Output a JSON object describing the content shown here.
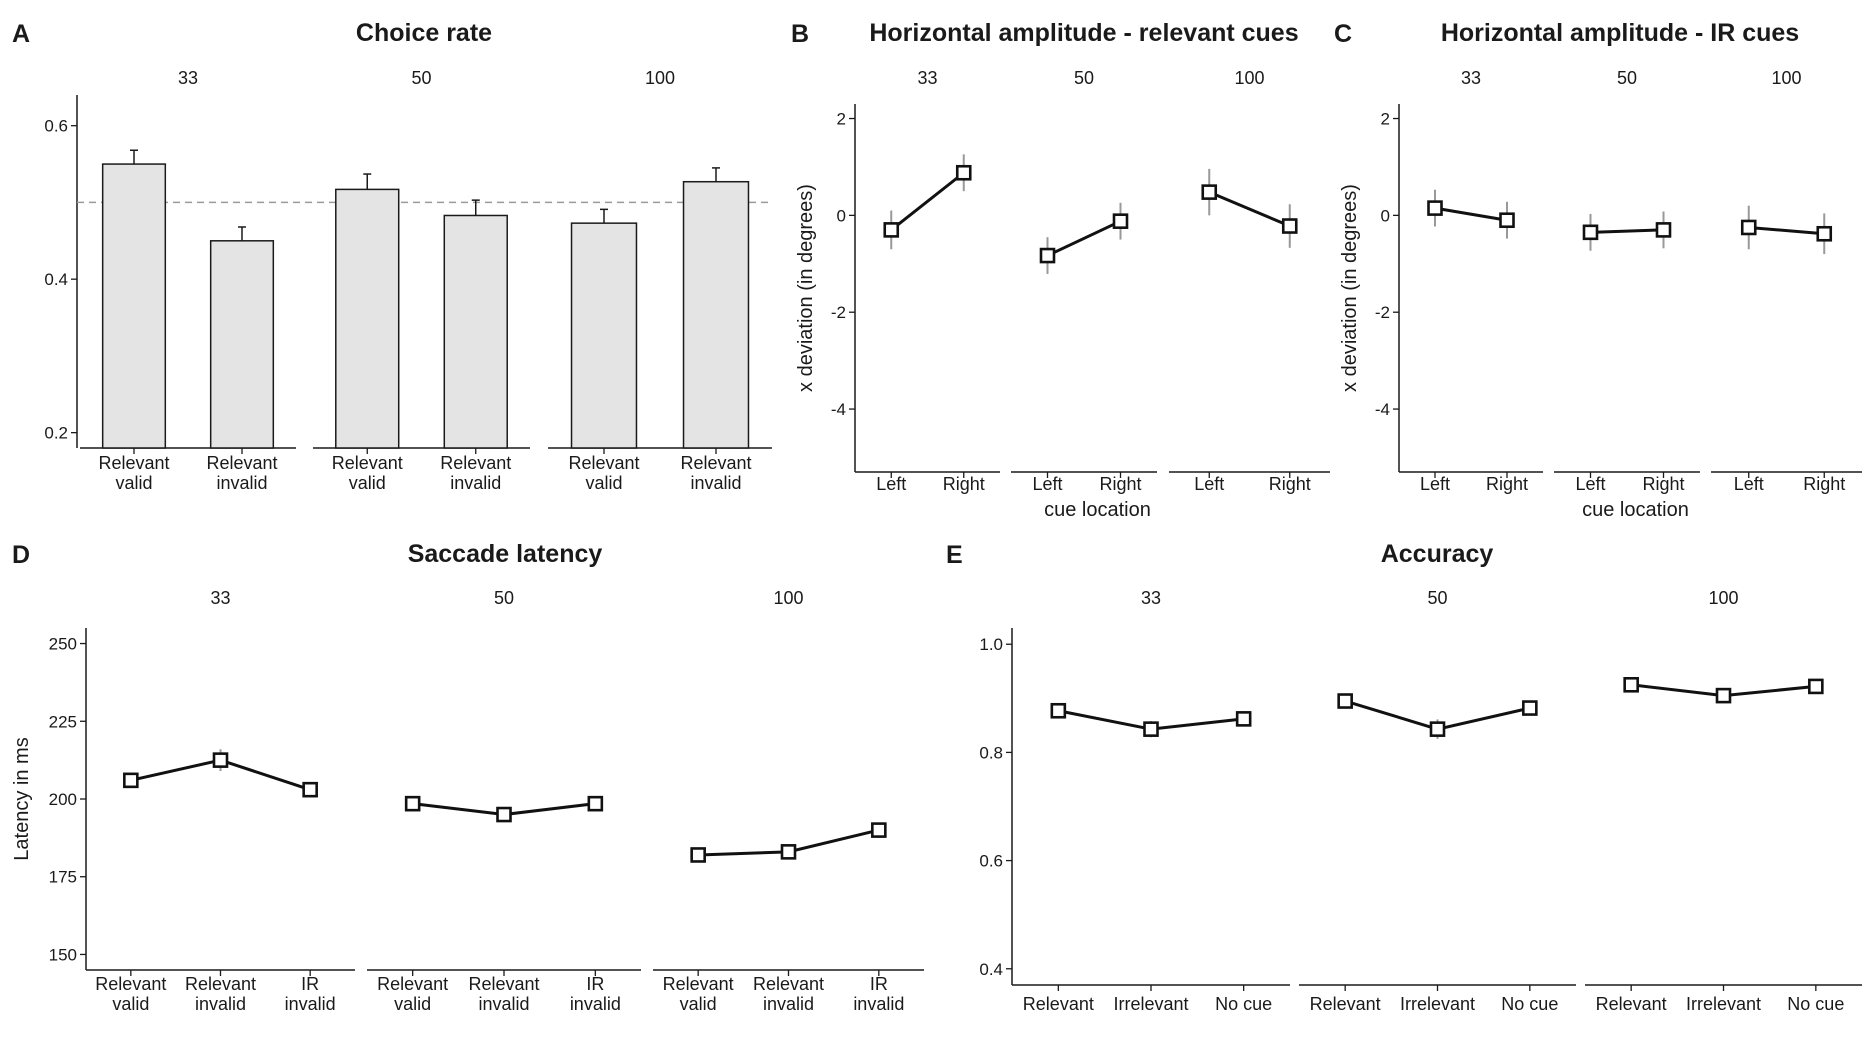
{
  "chart_data": [
    {
      "id": "A",
      "type": "bar",
      "panel_label": "A",
      "title": "Choice rate",
      "xlabel": "",
      "ylabel": "",
      "ylim": [
        0.18,
        0.64
      ],
      "yticks": [
        0.2,
        0.4,
        0.6
      ],
      "ytick_labels": [
        "0.2",
        "0.4",
        "0.6"
      ],
      "reference_line": 0.5,
      "categories": [
        [
          "Relevant",
          "valid"
        ],
        [
          "Relevant",
          "invalid"
        ]
      ],
      "facets": [
        {
          "label": "33",
          "values": [
            0.55,
            0.45
          ],
          "errors": [
            0.018,
            0.018
          ]
        },
        {
          "label": "50",
          "values": [
            0.517,
            0.483
          ],
          "errors": [
            0.02,
            0.02
          ]
        },
        {
          "label": "100",
          "values": [
            0.473,
            0.527
          ],
          "errors": [
            0.018,
            0.018
          ]
        }
      ]
    },
    {
      "id": "B",
      "type": "line",
      "panel_label": "B",
      "title": "Horizontal amplitude - relevant cues",
      "xlabel": "cue location",
      "ylabel": "x deviation (in degrees)",
      "ylim": [
        -5.3,
        2.3
      ],
      "yticks": [
        -4,
        -2,
        0,
        2
      ],
      "ytick_labels": [
        "-4",
        "-2",
        "0",
        "2"
      ],
      "categories": [
        [
          "Left"
        ],
        [
          "Right"
        ]
      ],
      "facets": [
        {
          "label": "33",
          "values": [
            -0.3,
            0.88
          ],
          "errors": [
            0.4,
            0.38
          ]
        },
        {
          "label": "50",
          "values": [
            -0.83,
            -0.12
          ],
          "errors": [
            0.38,
            0.38
          ]
        },
        {
          "label": "100",
          "values": [
            0.48,
            -0.22
          ],
          "errors": [
            0.48,
            0.45
          ]
        }
      ]
    },
    {
      "id": "C",
      "type": "line",
      "panel_label": "C",
      "title": "Horizontal amplitude - IR cues",
      "xlabel": "cue location",
      "ylabel": "x deviation (in degrees)",
      "ylim": [
        -5.3,
        2.3
      ],
      "yticks": [
        -4,
        -2,
        0,
        2
      ],
      "ytick_labels": [
        "-4",
        "-2",
        "0",
        "2"
      ],
      "categories": [
        [
          "Left"
        ],
        [
          "Right"
        ]
      ],
      "facets": [
        {
          "label": "33",
          "values": [
            0.15,
            -0.1
          ],
          "errors": [
            0.38,
            0.38
          ]
        },
        {
          "label": "50",
          "values": [
            -0.35,
            -0.3
          ],
          "errors": [
            0.38,
            0.38
          ]
        },
        {
          "label": "100",
          "values": [
            -0.25,
            -0.38
          ],
          "errors": [
            0.45,
            0.42
          ]
        }
      ]
    },
    {
      "id": "D",
      "type": "line",
      "panel_label": "D",
      "title": "Saccade latency",
      "xlabel": "",
      "ylabel": "Latency in ms",
      "ylim": [
        145,
        255
      ],
      "yticks": [
        150,
        175,
        200,
        225,
        250
      ],
      "ytick_labels": [
        "150",
        "175",
        "200",
        "225",
        "250"
      ],
      "categories": [
        [
          "Relevant",
          "valid"
        ],
        [
          "Relevant",
          "invalid"
        ],
        [
          "IR",
          "invalid"
        ]
      ],
      "facets": [
        {
          "label": "33",
          "values": [
            206,
            212.5,
            203
          ],
          "errors": [
            2,
            3.5,
            1.5
          ]
        },
        {
          "label": "50",
          "values": [
            198.5,
            195,
            198.5
          ],
          "errors": [
            1.5,
            1.5,
            1.5
          ]
        },
        {
          "label": "100",
          "values": [
            182,
            183,
            190
          ],
          "errors": [
            1.5,
            2,
            1.5
          ]
        }
      ]
    },
    {
      "id": "E",
      "type": "line",
      "panel_label": "E",
      "title": "Accuracy",
      "xlabel": "",
      "ylabel": "",
      "ylim": [
        0.37,
        1.03
      ],
      "yticks": [
        0.4,
        0.6,
        0.8,
        1.0
      ],
      "ytick_labels": [
        "0.4",
        "0.6",
        "0.8",
        "1.0"
      ],
      "categories": [
        [
          "Relevant"
        ],
        [
          "Irrelevant"
        ],
        [
          "No cue"
        ]
      ],
      "facets": [
        {
          "label": "33",
          "values": [
            0.877,
            0.843,
            0.862
          ],
          "errors": [
            0.01,
            0.015,
            0.01
          ]
        },
        {
          "label": "50",
          "values": [
            0.895,
            0.843,
            0.882
          ],
          "errors": [
            0.014,
            0.018,
            0.01
          ]
        },
        {
          "label": "100",
          "values": [
            0.925,
            0.905,
            0.922
          ],
          "errors": [
            0.008,
            0.01,
            0.008
          ]
        }
      ]
    }
  ],
  "colors": {
    "bar_fill": "#e4e4e4",
    "bar_stroke": "#1a1a1a",
    "line": "#111111",
    "marker_stroke": "#111111",
    "marker_fill": "#ffffff",
    "error_bar_lines": "#999999",
    "reference_line": "#9a9a9a",
    "axis": "#1a1a1a",
    "text": "#1a1a1a"
  }
}
